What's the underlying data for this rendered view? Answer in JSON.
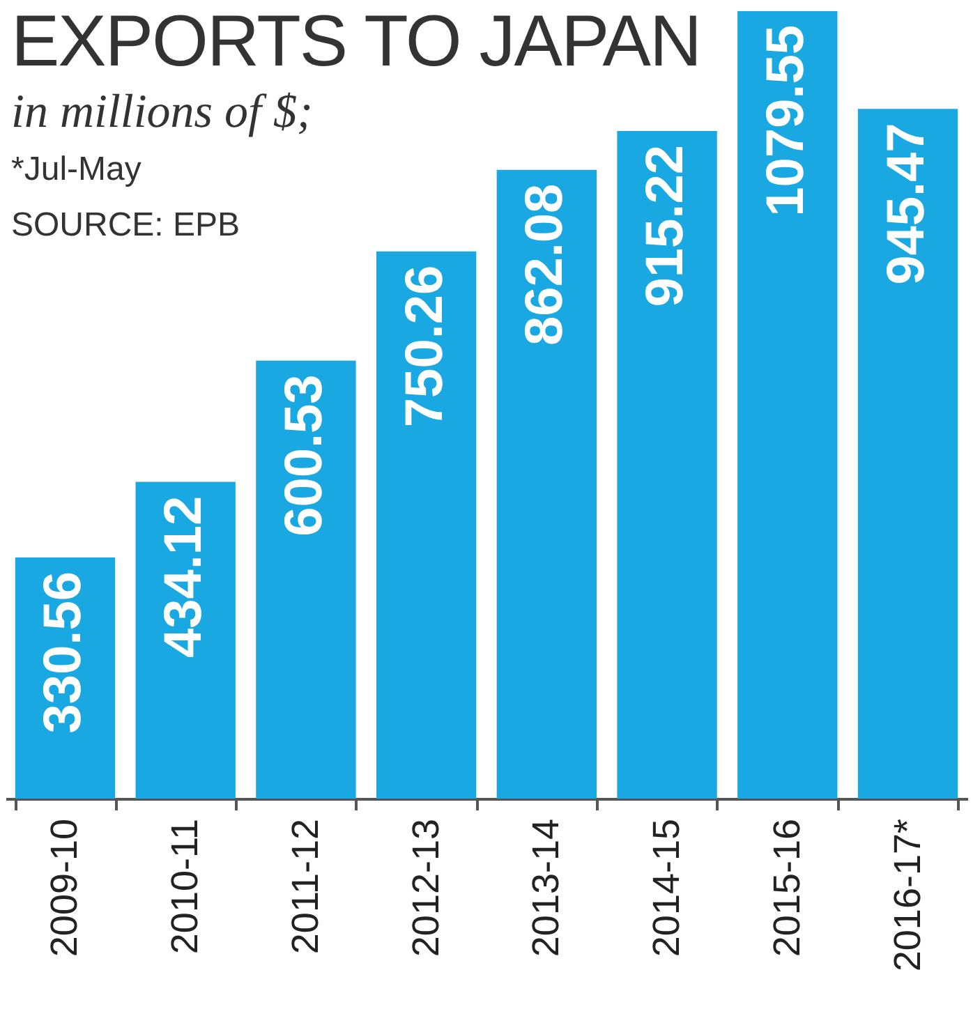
{
  "chart_data": {
    "type": "bar",
    "title": "EXPORTS TO JAPAN",
    "subtitle": "in millions of $;",
    "annotations": [
      "*Jul-May",
      "SOURCE: EPB"
    ],
    "categories": [
      "2009-10",
      "2010-11",
      "2011-12",
      "2012-13",
      "2013-14",
      "2014-15",
      "2015-16",
      "2016-17*"
    ],
    "values": [
      330.56,
      434.12,
      600.53,
      750.26,
      862.08,
      915.22,
      1079.55,
      945.47
    ],
    "color": "#1aa8e2",
    "data_labels": true
  }
}
